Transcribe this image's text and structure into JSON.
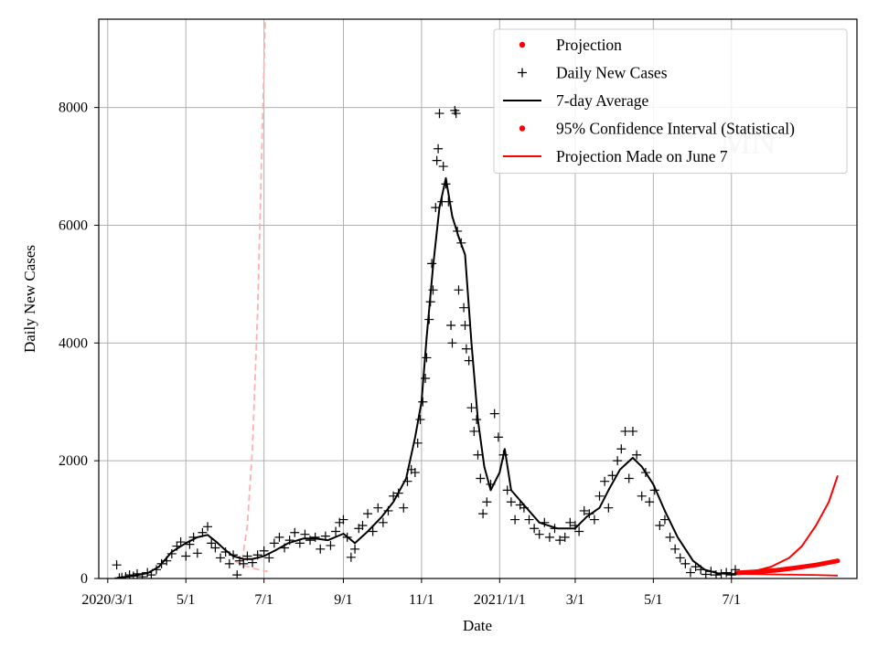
{
  "chart_data": {
    "type": "line",
    "xlabel": "Date",
    "ylabel": "Daily New Cases",
    "x_axis": {
      "unit": "date",
      "range": [
        "2020-02-23",
        "2021-10-07"
      ],
      "ticks": [
        {
          "date": "2020-03-01",
          "label": "2020/3/1"
        },
        {
          "date": "2020-05-01",
          "label": "5/1"
        },
        {
          "date": "2020-07-01",
          "label": "7/1"
        },
        {
          "date": "2020-09-01",
          "label": "9/1"
        },
        {
          "date": "2020-11-01",
          "label": "11/1"
        },
        {
          "date": "2021-01-01",
          "label": "2021/1/1"
        },
        {
          "date": "2021-03-01",
          "label": "3/1"
        },
        {
          "date": "2021-05-01",
          "label": "5/1"
        },
        {
          "date": "2021-07-01",
          "label": "7/1"
        }
      ]
    },
    "y_axis": {
      "range": [
        0,
        9500
      ],
      "ticks": [
        0,
        2000,
        4000,
        6000,
        8000
      ]
    },
    "grid": true,
    "legend_position": "top-right",
    "legend": [
      {
        "label": "Projection",
        "kind": "marker-dot",
        "color": "#ff0000"
      },
      {
        "label": "Daily New Cases",
        "kind": "marker-plus",
        "color": "#000000"
      },
      {
        "label": "7-day Average",
        "kind": "line",
        "color": "#000000"
      },
      {
        "label": "95% Confidence Interval (Statistical)",
        "kind": "marker-dot",
        "color": "#ff0000"
      },
      {
        "label": "Projection Made on June 7",
        "kind": "line",
        "color": "#ff0000"
      }
    ],
    "watermark": "MN",
    "series": [
      {
        "name": "7-day Average",
        "color": "#000000",
        "points": [
          [
            "2020-03-10",
            15
          ],
          [
            "2020-03-20",
            40
          ],
          [
            "2020-04-01",
            90
          ],
          [
            "2020-04-10",
            200
          ],
          [
            "2020-04-20",
            450
          ],
          [
            "2020-05-01",
            600
          ],
          [
            "2020-05-10",
            700
          ],
          [
            "2020-05-18",
            740
          ],
          [
            "2020-05-25",
            620
          ],
          [
            "2020-06-01",
            480
          ],
          [
            "2020-06-07",
            380
          ],
          [
            "2020-06-15",
            330
          ],
          [
            "2020-06-22",
            330
          ],
          [
            "2020-07-01",
            380
          ],
          [
            "2020-07-10",
            480
          ],
          [
            "2020-07-20",
            600
          ],
          [
            "2020-08-01",
            680
          ],
          [
            "2020-08-10",
            680
          ],
          [
            "2020-08-20",
            650
          ],
          [
            "2020-09-01",
            760
          ],
          [
            "2020-09-10",
            600
          ],
          [
            "2020-09-20",
            800
          ],
          [
            "2020-10-01",
            1050
          ],
          [
            "2020-10-10",
            1300
          ],
          [
            "2020-10-20",
            1700
          ],
          [
            "2020-10-27",
            2400
          ],
          [
            "2020-11-01",
            3000
          ],
          [
            "2020-11-05",
            4100
          ],
          [
            "2020-11-10",
            5300
          ],
          [
            "2020-11-15",
            6300
          ],
          [
            "2020-11-20",
            6800
          ],
          [
            "2020-11-25",
            6150
          ],
          [
            "2020-11-30",
            5800
          ],
          [
            "2020-12-05",
            5500
          ],
          [
            "2020-12-10",
            4000
          ],
          [
            "2020-12-15",
            2700
          ],
          [
            "2020-12-20",
            1900
          ],
          [
            "2020-12-25",
            1500
          ],
          [
            "2021-01-01",
            1800
          ],
          [
            "2021-01-05",
            2200
          ],
          [
            "2021-01-10",
            1500
          ],
          [
            "2021-01-20",
            1250
          ],
          [
            "2021-02-01",
            950
          ],
          [
            "2021-02-15",
            850
          ],
          [
            "2021-03-01",
            850
          ],
          [
            "2021-03-10",
            1050
          ],
          [
            "2021-03-20",
            1200
          ],
          [
            "2021-03-27",
            1500
          ],
          [
            "2021-04-05",
            1850
          ],
          [
            "2021-04-15",
            2050
          ],
          [
            "2021-04-22",
            1900
          ],
          [
            "2021-05-01",
            1600
          ],
          [
            "2021-05-10",
            1150
          ],
          [
            "2021-05-20",
            700
          ],
          [
            "2021-06-01",
            300
          ],
          [
            "2021-06-10",
            150
          ],
          [
            "2021-06-20",
            90
          ],
          [
            "2021-07-01",
            75
          ],
          [
            "2021-07-05",
            80
          ]
        ]
      },
      {
        "name": "Projection Made on June 7",
        "color": "#ff0000",
        "points": [
          [
            "2021-07-05",
            90
          ],
          [
            "2021-07-20",
            130
          ],
          [
            "2021-08-01",
            200
          ],
          [
            "2021-08-15",
            350
          ],
          [
            "2021-08-25",
            550
          ],
          [
            "2021-09-05",
            900
          ],
          [
            "2021-09-15",
            1300
          ],
          [
            "2021-09-22",
            1750
          ]
        ]
      },
      {
        "name": "Projection (lower)",
        "color": "#ff0000",
        "points": [
          [
            "2021-07-05",
            80
          ],
          [
            "2021-08-01",
            70
          ],
          [
            "2021-09-01",
            60
          ],
          [
            "2021-09-22",
            50
          ]
        ]
      },
      {
        "name": "Projection (band)",
        "color": "#ff0000",
        "points": [
          [
            "2021-07-05",
            95
          ],
          [
            "2021-07-20",
            115
          ],
          [
            "2021-08-05",
            140
          ],
          [
            "2021-08-20",
            180
          ],
          [
            "2021-09-05",
            230
          ],
          [
            "2021-09-22",
            300
          ]
        ]
      },
      {
        "name": "Earlier projection (upper)",
        "color": "#ffb0b0",
        "points": [
          [
            "2020-06-14",
            300
          ],
          [
            "2020-06-18",
            900
          ],
          [
            "2020-06-22",
            2200
          ],
          [
            "2020-06-26",
            4500
          ],
          [
            "2020-06-29",
            7000
          ],
          [
            "2020-07-02",
            9500
          ]
        ]
      },
      {
        "name": "Earlier projection (lower)",
        "color": "#ffb0b0",
        "points": [
          [
            "2020-06-08",
            300
          ],
          [
            "2020-06-15",
            220
          ],
          [
            "2020-06-25",
            160
          ],
          [
            "2020-07-04",
            120
          ]
        ]
      },
      {
        "name": "Daily New Cases",
        "color": "#000000",
        "points": [
          [
            "2020-03-08",
            230
          ],
          [
            "2020-03-10",
            10
          ],
          [
            "2020-03-12",
            20
          ],
          [
            "2020-03-15",
            30
          ],
          [
            "2020-03-18",
            60
          ],
          [
            "2020-03-21",
            40
          ],
          [
            "2020-03-24",
            80
          ],
          [
            "2020-03-28",
            30
          ],
          [
            "2020-04-01",
            100
          ],
          [
            "2020-04-04",
            60
          ],
          [
            "2020-04-08",
            150
          ],
          [
            "2020-04-12",
            250
          ],
          [
            "2020-04-16",
            300
          ],
          [
            "2020-04-20",
            420
          ],
          [
            "2020-04-24",
            550
          ],
          [
            "2020-04-27",
            620
          ],
          [
            "2020-05-01",
            380
          ],
          [
            "2020-05-04",
            580
          ],
          [
            "2020-05-07",
            700
          ],
          [
            "2020-05-10",
            430
          ],
          [
            "2020-05-14",
            780
          ],
          [
            "2020-05-18",
            880
          ],
          [
            "2020-05-21",
            600
          ],
          [
            "2020-05-24",
            520
          ],
          [
            "2020-05-28",
            350
          ],
          [
            "2020-06-01",
            450
          ],
          [
            "2020-06-04",
            250
          ],
          [
            "2020-06-07",
            400
          ],
          [
            "2020-06-10",
            60
          ],
          [
            "2020-06-12",
            300
          ],
          [
            "2020-06-15",
            250
          ],
          [
            "2020-06-18",
            380
          ],
          [
            "2020-06-22",
            270
          ],
          [
            "2020-06-26",
            400
          ],
          [
            "2020-07-01",
            470
          ],
          [
            "2020-07-05",
            350
          ],
          [
            "2020-07-09",
            600
          ],
          [
            "2020-07-13",
            700
          ],
          [
            "2020-07-17",
            520
          ],
          [
            "2020-07-21",
            650
          ],
          [
            "2020-07-25",
            780
          ],
          [
            "2020-07-29",
            600
          ],
          [
            "2020-08-02",
            750
          ],
          [
            "2020-08-06",
            650
          ],
          [
            "2020-08-10",
            700
          ],
          [
            "2020-08-14",
            500
          ],
          [
            "2020-08-18",
            720
          ],
          [
            "2020-08-22",
            560
          ],
          [
            "2020-08-26",
            800
          ],
          [
            "2020-08-29",
            950
          ],
          [
            "2020-09-01",
            1000
          ],
          [
            "2020-09-04",
            700
          ],
          [
            "2020-09-07",
            360
          ],
          [
            "2020-09-10",
            500
          ],
          [
            "2020-09-13",
            850
          ],
          [
            "2020-09-16",
            900
          ],
          [
            "2020-09-20",
            1100
          ],
          [
            "2020-09-24",
            800
          ],
          [
            "2020-09-28",
            1200
          ],
          [
            "2020-10-02",
            950
          ],
          [
            "2020-10-06",
            1150
          ],
          [
            "2020-10-10",
            1400
          ],
          [
            "2020-10-14",
            1450
          ],
          [
            "2020-10-18",
            1200
          ],
          [
            "2020-10-21",
            1650
          ],
          [
            "2020-10-24",
            1850
          ],
          [
            "2020-10-27",
            1800
          ],
          [
            "2020-10-29",
            2300
          ],
          [
            "2020-10-31",
            2700
          ],
          [
            "2020-11-02",
            3000
          ],
          [
            "2020-11-04",
            3400
          ],
          [
            "2020-11-05",
            3750
          ],
          [
            "2020-11-07",
            4400
          ],
          [
            "2020-11-08",
            4700
          ],
          [
            "2020-11-09",
            5350
          ],
          [
            "2020-11-10",
            4900
          ],
          [
            "2020-11-12",
            6300
          ],
          [
            "2020-11-13",
            7100
          ],
          [
            "2020-11-14",
            7300
          ],
          [
            "2020-11-15",
            7900
          ],
          [
            "2020-11-17",
            6400
          ],
          [
            "2020-11-18",
            7000
          ],
          [
            "2020-11-20",
            6700
          ],
          [
            "2020-11-22",
            6400
          ],
          [
            "2020-11-24",
            4300
          ],
          [
            "2020-11-25",
            4000
          ],
          [
            "2020-11-27",
            7950
          ],
          [
            "2020-11-28",
            7900
          ],
          [
            "2020-11-29",
            5900
          ],
          [
            "2020-11-30",
            4900
          ],
          [
            "2020-12-02",
            5700
          ],
          [
            "2020-12-04",
            4600
          ],
          [
            "2020-12-05",
            4300
          ],
          [
            "2020-12-06",
            3900
          ],
          [
            "2020-12-08",
            3700
          ],
          [
            "2020-12-10",
            2900
          ],
          [
            "2020-12-12",
            2500
          ],
          [
            "2020-12-14",
            2700
          ],
          [
            "2020-12-15",
            2100
          ],
          [
            "2020-12-17",
            1700
          ],
          [
            "2020-12-19",
            1100
          ],
          [
            "2020-12-22",
            1300
          ],
          [
            "2020-12-25",
            1600
          ],
          [
            "2020-12-28",
            2800
          ],
          [
            "2020-12-31",
            2400
          ],
          [
            "2021-01-04",
            2100
          ],
          [
            "2021-01-07",
            1500
          ],
          [
            "2021-01-10",
            1300
          ],
          [
            "2021-01-13",
            1000
          ],
          [
            "2021-01-17",
            1250
          ],
          [
            "2021-01-20",
            1200
          ],
          [
            "2021-01-24",
            1000
          ],
          [
            "2021-01-28",
            850
          ],
          [
            "2021-02-01",
            750
          ],
          [
            "2021-02-05",
            950
          ],
          [
            "2021-02-09",
            700
          ],
          [
            "2021-02-13",
            850
          ],
          [
            "2021-02-17",
            650
          ],
          [
            "2021-02-21",
            700
          ],
          [
            "2021-02-25",
            950
          ],
          [
            "2021-03-01",
            900
          ],
          [
            "2021-03-04",
            800
          ],
          [
            "2021-03-08",
            1150
          ],
          [
            "2021-03-12",
            1100
          ],
          [
            "2021-03-16",
            1000
          ],
          [
            "2021-03-20",
            1400
          ],
          [
            "2021-03-24",
            1650
          ],
          [
            "2021-03-27",
            1200
          ],
          [
            "2021-03-30",
            1750
          ],
          [
            "2021-04-03",
            2000
          ],
          [
            "2021-04-06",
            2200
          ],
          [
            "2021-04-09",
            2500
          ],
          [
            "2021-04-12",
            1700
          ],
          [
            "2021-04-15",
            2500
          ],
          [
            "2021-04-18",
            2100
          ],
          [
            "2021-04-22",
            1400
          ],
          [
            "2021-04-25",
            1800
          ],
          [
            "2021-04-28",
            1300
          ],
          [
            "2021-05-02",
            1500
          ],
          [
            "2021-05-06",
            900
          ],
          [
            "2021-05-10",
            1000
          ],
          [
            "2021-05-14",
            700
          ],
          [
            "2021-05-18",
            500
          ],
          [
            "2021-05-22",
            350
          ],
          [
            "2021-05-26",
            250
          ],
          [
            "2021-05-30",
            100
          ],
          [
            "2021-06-03",
            200
          ],
          [
            "2021-06-07",
            150
          ],
          [
            "2021-06-11",
            70
          ],
          [
            "2021-06-15",
            120
          ],
          [
            "2021-06-19",
            60
          ],
          [
            "2021-06-23",
            80
          ],
          [
            "2021-06-27",
            100
          ],
          [
            "2021-07-01",
            60
          ],
          [
            "2021-07-04",
            150
          ]
        ]
      }
    ]
  }
}
